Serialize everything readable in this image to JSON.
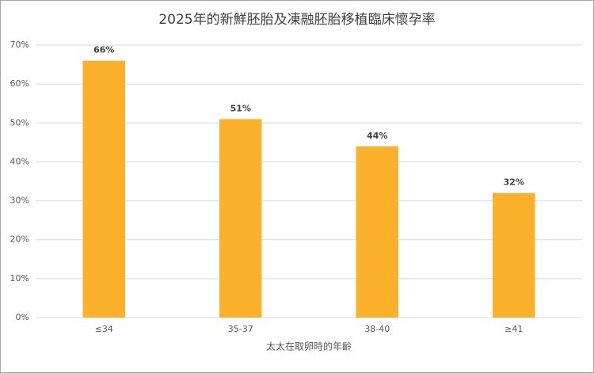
{
  "chart_data": {
    "type": "bar",
    "title": "2025年的新鮮胚胎及凍融胚胎移植臨床懷孕率",
    "x_label": "太太在取卵時的年齡",
    "categories": [
      "≤34",
      "35-37",
      "38-40",
      "≥41"
    ],
    "values": [
      66,
      51,
      44,
      32
    ],
    "value_labels": [
      "66%",
      "51%",
      "44%",
      "32%"
    ],
    "color": "#fbb12b",
    "ylim": [
      0,
      70
    ],
    "yticks": [
      {
        "value": 0,
        "label": "0%"
      },
      {
        "value": 10,
        "label": "10%"
      },
      {
        "value": 20,
        "label": "20%"
      },
      {
        "value": 30,
        "label": "30%"
      },
      {
        "value": 40,
        "label": "40%"
      },
      {
        "value": 50,
        "label": "50%"
      },
      {
        "value": 60,
        "label": "60%"
      },
      {
        "value": 70,
        "label": "70%"
      }
    ],
    "grid": true
  }
}
